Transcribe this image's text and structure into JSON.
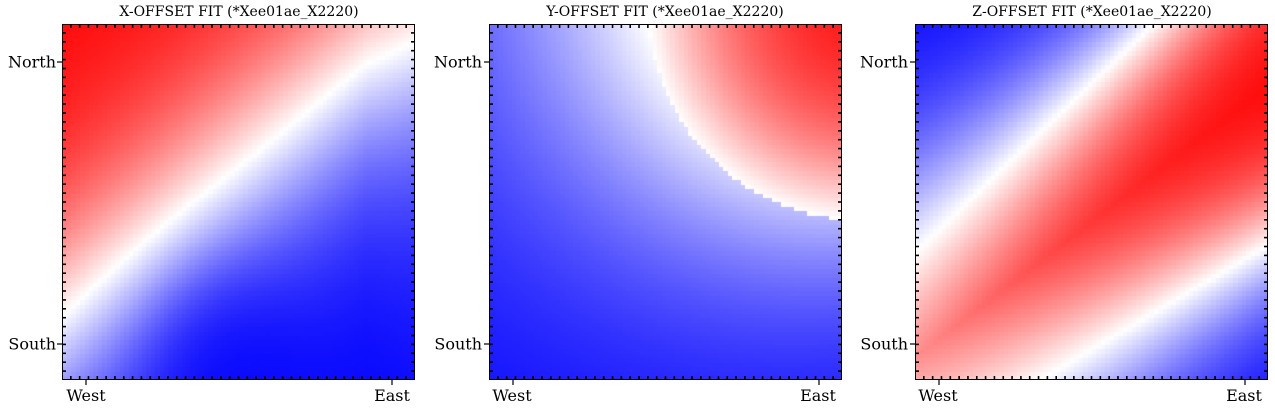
{
  "chart_data": [
    {
      "type": "heatmap",
      "title": "X-OFFSET FIT (*Xee01ae_X2220)",
      "x_tick_labels": [
        "West",
        "East"
      ],
      "y_tick_labels": [
        "North",
        "South"
      ],
      "colormap": "bwr",
      "colors": {
        "low": "#0000ff",
        "mid": "#ffffff",
        "high": "#ff0000"
      },
      "surface": {
        "zero_line": [
          [
            0.0,
            0.18
          ],
          [
            0.25,
            0.45
          ],
          [
            0.5,
            0.7
          ],
          [
            0.75,
            0.88
          ],
          [
            1.0,
            1.0
          ]
        ],
        "extra_zero_x": 0.88,
        "min_at": [
          0.47,
          0.03
        ],
        "max_at": [
          0.0,
          1.0
        ]
      }
    },
    {
      "type": "heatmap",
      "title": "Y-OFFSET FIT (*Xee01ae_X2220)",
      "x_tick_labels": [
        "West",
        "East"
      ],
      "y_tick_labels": [
        "North",
        "South"
      ],
      "colormap": "bwr",
      "colors": {
        "low": "#0000ff",
        "mid": "#ffffff",
        "high": "#ff0000"
      },
      "surface": {
        "zero_line": [
          [
            0.3,
            1.0
          ],
          [
            0.45,
            0.82
          ],
          [
            0.6,
            0.7
          ],
          [
            0.8,
            0.6
          ],
          [
            1.0,
            0.58
          ]
        ],
        "min_at": [
          1.0,
          0.0
        ],
        "max_at": [
          1.0,
          1.0
        ]
      }
    },
    {
      "type": "heatmap",
      "title": "Z-OFFSET FIT (*Xee01ae_X2220)",
      "x_tick_labels": [
        "West",
        "East"
      ],
      "y_tick_labels": [
        "North",
        "South"
      ],
      "colormap": "bwr",
      "colors": {
        "low": "#0000ff",
        "mid": "#ffffff",
        "high": "#ff0000"
      },
      "surface": {
        "zero_line": [
          [
            0.0,
            0.36
          ],
          [
            0.25,
            0.6
          ],
          [
            0.5,
            0.82
          ],
          [
            0.55,
            1.0
          ]
        ],
        "second_zero_line": [
          [
            0.35,
            0.0
          ],
          [
            0.6,
            0.15
          ],
          [
            0.8,
            0.28
          ],
          [
            1.0,
            0.38
          ]
        ],
        "min_at": [
          0.0,
          1.0
        ],
        "max_at": [
          1.0,
          1.0
        ]
      }
    }
  ]
}
